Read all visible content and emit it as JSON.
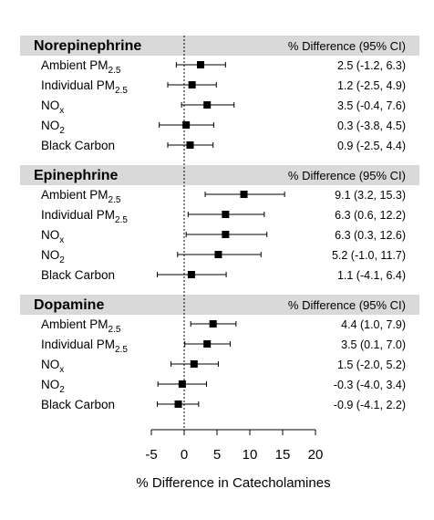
{
  "chart_data": {
    "type": "forest",
    "header_label": "% Difference (95% CI)",
    "xlabel": "% Difference in Catecholamines",
    "xlim": [
      -5,
      20
    ],
    "xticks": [
      "-5",
      "0",
      "5",
      "10",
      "15",
      "20"
    ],
    "reference_line": 0,
    "panels": [
      {
        "title": "Norepinephrine",
        "rows": [
          {
            "label": "Ambient PM",
            "sub": "2.5",
            "est": 2.5,
            "lo": -1.2,
            "hi": 6.3,
            "text": "2.5 (-1.2, 6.3)"
          },
          {
            "label": "Individual PM",
            "sub": "2.5",
            "est": 1.2,
            "lo": -2.5,
            "hi": 4.9,
            "text": "1.2 (-2.5, 4.9)"
          },
          {
            "label": "NO",
            "sub": "x",
            "est": 3.5,
            "lo": -0.4,
            "hi": 7.6,
            "text": "3.5 (-0.4, 7.6)"
          },
          {
            "label": "NO",
            "sub": "2",
            "est": 0.3,
            "lo": -3.8,
            "hi": 4.5,
            "text": "0.3 (-3.8, 4.5)"
          },
          {
            "label": "Black Carbon",
            "sub": "",
            "est": 0.9,
            "lo": -2.5,
            "hi": 4.4,
            "text": "0.9 (-2.5, 4.4)"
          }
        ]
      },
      {
        "title": "Epinephrine",
        "rows": [
          {
            "label": "Ambient PM",
            "sub": "2.5",
            "est": 9.1,
            "lo": 3.2,
            "hi": 15.3,
            "text": "9.1 (3.2, 15.3)"
          },
          {
            "label": "Individual PM",
            "sub": "2.5",
            "est": 6.3,
            "lo": 0.6,
            "hi": 12.2,
            "text": "6.3 (0.6, 12.2)"
          },
          {
            "label": "NO",
            "sub": "x",
            "est": 6.3,
            "lo": 0.3,
            "hi": 12.6,
            "text": "6.3 (0.3, 12.6)"
          },
          {
            "label": "NO",
            "sub": "2",
            "est": 5.2,
            "lo": -1.0,
            "hi": 11.7,
            "text": "5.2 (-1.0, 11.7)"
          },
          {
            "label": "Black Carbon",
            "sub": "",
            "est": 1.1,
            "lo": -4.1,
            "hi": 6.4,
            "text": "1.1 (-4.1, 6.4)"
          }
        ]
      },
      {
        "title": "Dopamine",
        "rows": [
          {
            "label": "Ambient PM",
            "sub": "2.5",
            "est": 4.4,
            "lo": 1.0,
            "hi": 7.9,
            "text": "4.4 (1.0, 7.9)"
          },
          {
            "label": "Individual PM",
            "sub": "2.5",
            "est": 3.5,
            "lo": 0.1,
            "hi": 7.0,
            "text": "3.5 (0.1, 7.0)"
          },
          {
            "label": "NO",
            "sub": "x",
            "est": 1.5,
            "lo": -2.0,
            "hi": 5.2,
            "text": "1.5 (-2.0, 5.2)"
          },
          {
            "label": "NO",
            "sub": "2",
            "est": -0.3,
            "lo": -4.0,
            "hi": 3.4,
            "text": "-0.3 (-4.0, 3.4)"
          },
          {
            "label": "Black Carbon",
            "sub": "",
            "est": -0.9,
            "lo": -4.1,
            "hi": 2.2,
            "text": "-0.9 (-4.1, 2.2)"
          }
        ]
      }
    ],
    "colors": {
      "header_band": "#d9d9d9",
      "marker": "#000000",
      "line": "#000000"
    }
  }
}
